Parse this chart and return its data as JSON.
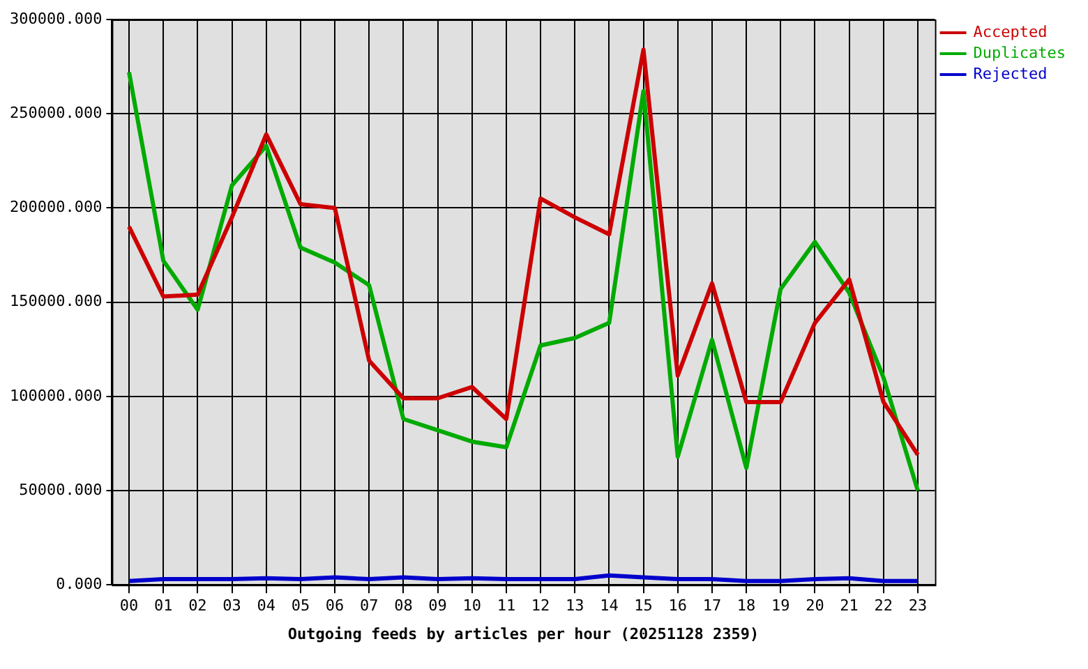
{
  "chart_data": {
    "type": "line",
    "xlabel": "Outgoing feeds by articles per hour (20251128 2359)",
    "categories": [
      "00",
      "01",
      "02",
      "03",
      "04",
      "05",
      "06",
      "07",
      "08",
      "09",
      "10",
      "11",
      "12",
      "13",
      "14",
      "15",
      "16",
      "17",
      "18",
      "19",
      "20",
      "21",
      "22",
      "23"
    ],
    "series": [
      {
        "name": "Accepted",
        "color": "#cc0000",
        "values": [
          190000,
          153000,
          154000,
          195000,
          239000,
          202000,
          200000,
          119000,
          99000,
          99000,
          105000,
          88000,
          205000,
          195000,
          186000,
          284000,
          111000,
          160000,
          97000,
          97000,
          139000,
          162000,
          97000,
          69000
        ]
      },
      {
        "name": "Duplicates",
        "color": "#00aa00",
        "values": [
          272000,
          172000,
          146000,
          212000,
          233000,
          179000,
          171000,
          159000,
          88000,
          82000,
          76000,
          73000,
          127000,
          131000,
          139000,
          262000,
          68000,
          130000,
          62000,
          157000,
          182000,
          155000,
          110000,
          50000
        ]
      },
      {
        "name": "Rejected",
        "color": "#0000cc",
        "values": [
          2000,
          3000,
          3000,
          3000,
          3500,
          3000,
          4000,
          3000,
          4000,
          3000,
          3500,
          3000,
          3000,
          3000,
          5000,
          4000,
          3000,
          3000,
          2000,
          2000,
          3000,
          3500,
          2000,
          2000
        ]
      }
    ],
    "ylim": [
      0,
      300000
    ],
    "yticks": [
      {
        "value": 0,
        "label": "0.000"
      },
      {
        "value": 50000,
        "label": "50000.000"
      },
      {
        "value": 100000,
        "label": "100000.000"
      },
      {
        "value": 150000,
        "label": "150000.000"
      },
      {
        "value": 200000,
        "label": "200000.000"
      },
      {
        "value": 250000,
        "label": "250000.000"
      },
      {
        "value": 300000,
        "label": "300000.000"
      }
    ],
    "grid": true,
    "legend": "top right",
    "marker": "none",
    "line_style": "solid"
  }
}
